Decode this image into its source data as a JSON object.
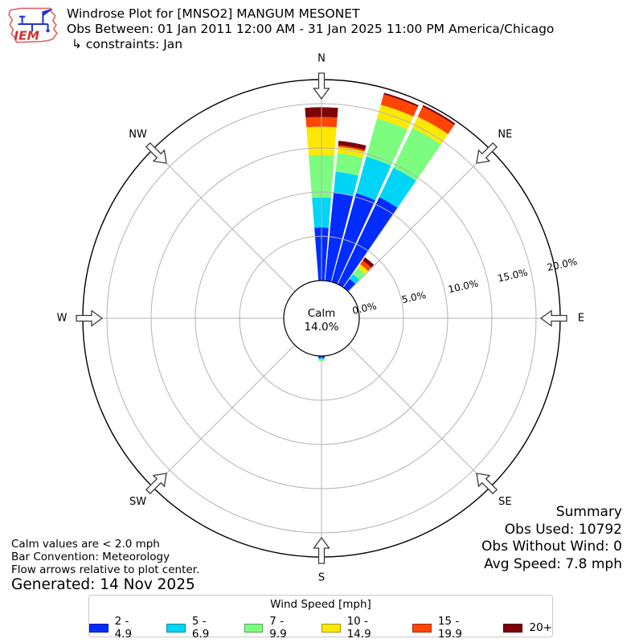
{
  "header": {
    "logo_text": "IEM",
    "title": "Windrose Plot for [MNSO2] MANGUM MESONET",
    "subtitle": "Obs Between: 01 Jan 2011 12:00 AM - 31 Jan 2025 11:00 PM America/Chicago",
    "constraints": "↳ constraints: Jan"
  },
  "chart_data": {
    "type": "windrose",
    "title": "Windrose Plot for [MNSO2] MANGUM MESONET",
    "units": "mph",
    "legend_title": "Wind Speed [mph]",
    "calm": {
      "label": "Calm",
      "value_label": "14.0%",
      "percent": 14.0,
      "threshold": "< 2.0 mph"
    },
    "rings_percent": [
      0,
      5,
      10,
      15,
      20
    ],
    "ring_labels": [
      "0.0%",
      "5.0%",
      "10.0%",
      "15.0%",
      "20.0%"
    ],
    "rmax_percent": 22.7,
    "bar_width_deg": 9,
    "compass": [
      {
        "label": "N",
        "deg": 0
      },
      {
        "label": "NE",
        "deg": 45
      },
      {
        "label": "E",
        "deg": 90
      },
      {
        "label": "SE",
        "deg": 135
      },
      {
        "label": "S",
        "deg": 180
      },
      {
        "label": "SW",
        "deg": 225
      },
      {
        "label": "W",
        "deg": 270
      },
      {
        "label": "NW",
        "deg": 315
      }
    ],
    "speed_bins": [
      {
        "label": "2 - 4.9",
        "color": "#012cff"
      },
      {
        "label": "5 - 6.9",
        "color": "#00d5f7"
      },
      {
        "label": "7 - 9.9",
        "color": "#7cfd7f"
      },
      {
        "label": "10 - 14.9",
        "color": "#fde801"
      },
      {
        "label": "15 - 19.9",
        "color": "#ff4503"
      },
      {
        "label": "20+",
        "color": "#7e0308"
      }
    ],
    "bars": [
      {
        "direction_deg": 0,
        "values_percent": [
          6.0,
          3.4,
          4.8,
          3.2,
          1.1,
          1.1
        ]
      },
      {
        "direction_deg": 10,
        "values_percent": [
          10.0,
          2.4,
          2.1,
          0.7,
          0.2,
          0.5
        ]
      },
      {
        "direction_deg": 20,
        "values_percent": [
          10.4,
          4.3,
          4.5,
          1.6,
          1.2,
          0.2
        ]
      },
      {
        "direction_deg": 30,
        "values_percent": [
          10.9,
          3.7,
          5.0,
          1.4,
          1.25,
          0.2
        ]
      },
      {
        "direction_deg": 40,
        "values_percent": [
          1.2,
          0.65,
          0.9,
          0.5,
          0.5,
          0.45
        ]
      },
      {
        "direction_deg": 180,
        "values_percent": [
          0.25,
          0.1,
          0.2,
          0,
          0,
          0
        ]
      }
    ]
  },
  "notes": {
    "line1": "Calm values are < 2.0 mph",
    "line2": "Bar Convention: Meteorology",
    "line3": "Flow arrows relative to plot center.",
    "generated": "Generated: 14 Nov 2025"
  },
  "summary": {
    "title": "Summary",
    "obs_used": "Obs Used: 10792",
    "obs_without_wind": "Obs Without Wind: 0",
    "avg_speed": "Avg Speed: 7.8 mph"
  }
}
